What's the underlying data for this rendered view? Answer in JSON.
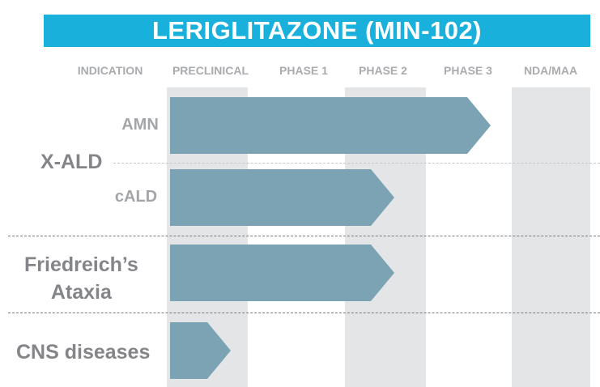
{
  "title": "LERIGLITAZONE (MIN-102)",
  "columns": [
    "INDICATION",
    "PRECLINICAL",
    "PHASE 1",
    "PHASE 2",
    "PHASE 3",
    "NDA/MAA"
  ],
  "groups": [
    {
      "label": "X-ALD"
    },
    {
      "label_line1": "Friedreich’s",
      "label_line2": "Ataxia"
    },
    {
      "label": "CNS diseases"
    }
  ],
  "programs": [
    {
      "name": "AMN",
      "group": "X-ALD",
      "stage": "PHASE 3"
    },
    {
      "name": "cALD",
      "group": "X-ALD",
      "stage": "PHASE 2"
    },
    {
      "name": "",
      "group": "Friedreich’s Ataxia",
      "stage": "PHASE 2"
    },
    {
      "name": "",
      "group": "CNS diseases",
      "stage": "PRECLINICAL"
    }
  ],
  "colors": {
    "title_bg": "#1ab0dc",
    "bar": "#7ba3b4",
    "column_bg": "#e4e5e7"
  }
}
